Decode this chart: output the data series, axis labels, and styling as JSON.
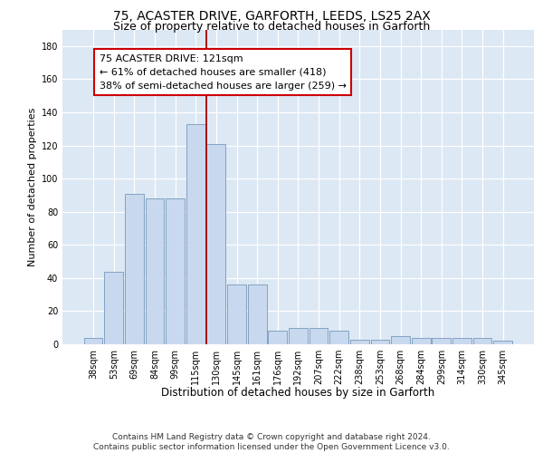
{
  "title1": "75, ACASTER DRIVE, GARFORTH, LEEDS, LS25 2AX",
  "title2": "Size of property relative to detached houses in Garforth",
  "xlabel": "Distribution of detached houses by size in Garforth",
  "ylabel": "Number of detached properties",
  "categories": [
    "38sqm",
    "53sqm",
    "69sqm",
    "84sqm",
    "99sqm",
    "115sqm",
    "130sqm",
    "145sqm",
    "161sqm",
    "176sqm",
    "192sqm",
    "207sqm",
    "222sqm",
    "238sqm",
    "253sqm",
    "268sqm",
    "284sqm",
    "299sqm",
    "314sqm",
    "330sqm",
    "345sqm"
  ],
  "values": [
    4,
    44,
    91,
    88,
    88,
    133,
    121,
    36,
    36,
    8,
    10,
    10,
    8,
    3,
    3,
    5,
    4,
    4,
    4,
    4,
    2
  ],
  "bar_color": "#c8d8ee",
  "bar_edge_color": "#7799bb",
  "bar_width": 0.92,
  "vline_x": 5.5,
  "vline_color": "#aa0000",
  "annotation_line1": "75 ACASTER DRIVE: 121sqm",
  "annotation_line2": "← 61% of detached houses are smaller (418)",
  "annotation_line3": "38% of semi-detached houses are larger (259) →",
  "ylim": [
    0,
    190
  ],
  "yticks": [
    0,
    20,
    40,
    60,
    80,
    100,
    120,
    140,
    160,
    180
  ],
  "background_color": "#dce8f4",
  "grid_color": "#ffffff",
  "footer": "Contains HM Land Registry data © Crown copyright and database right 2024.\nContains public sector information licensed under the Open Government Licence v3.0.",
  "title1_fontsize": 10,
  "title2_fontsize": 9,
  "xlabel_fontsize": 8.5,
  "ylabel_fontsize": 8,
  "tick_fontsize": 7,
  "annot_fontsize": 8
}
